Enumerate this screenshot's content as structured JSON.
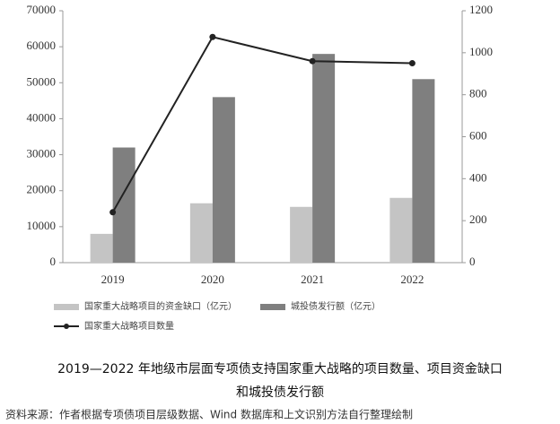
{
  "chart_data": {
    "type": "bar",
    "categories": [
      "2019",
      "2020",
      "2021",
      "2022"
    ],
    "series": [
      {
        "name": "国家重大战略项目的资金缺口（亿元）",
        "type": "bar",
        "color": "#c4c4c4",
        "values": [
          8000,
          16500,
          15500,
          18000
        ]
      },
      {
        "name": "城投债发行额（亿元）",
        "type": "bar",
        "color": "#7f7f7f",
        "values": [
          32000,
          46000,
          58000,
          51000
        ]
      },
      {
        "name": "国家重大战略项目数量",
        "type": "line",
        "axis": "y2",
        "color": "#222222",
        "values": [
          240,
          1075,
          960,
          950
        ]
      }
    ],
    "ylim": [
      0,
      70000
    ],
    "yticks": [
      0,
      10000,
      20000,
      30000,
      40000,
      50000,
      60000,
      70000
    ],
    "y2lim": [
      0,
      1200
    ],
    "y2ticks": [
      0,
      200,
      400,
      600,
      800,
      1000,
      1200
    ],
    "grid": false,
    "caption": [
      "2019—2022 年地级市层面专项债支持国家重大战略的项目数量、项目资金缺口",
      "和城投债发行额"
    ],
    "source": "资料来源：作者根据专项债项目层级数据、Wind 数据库和上文识别方法自行整理绘制"
  }
}
